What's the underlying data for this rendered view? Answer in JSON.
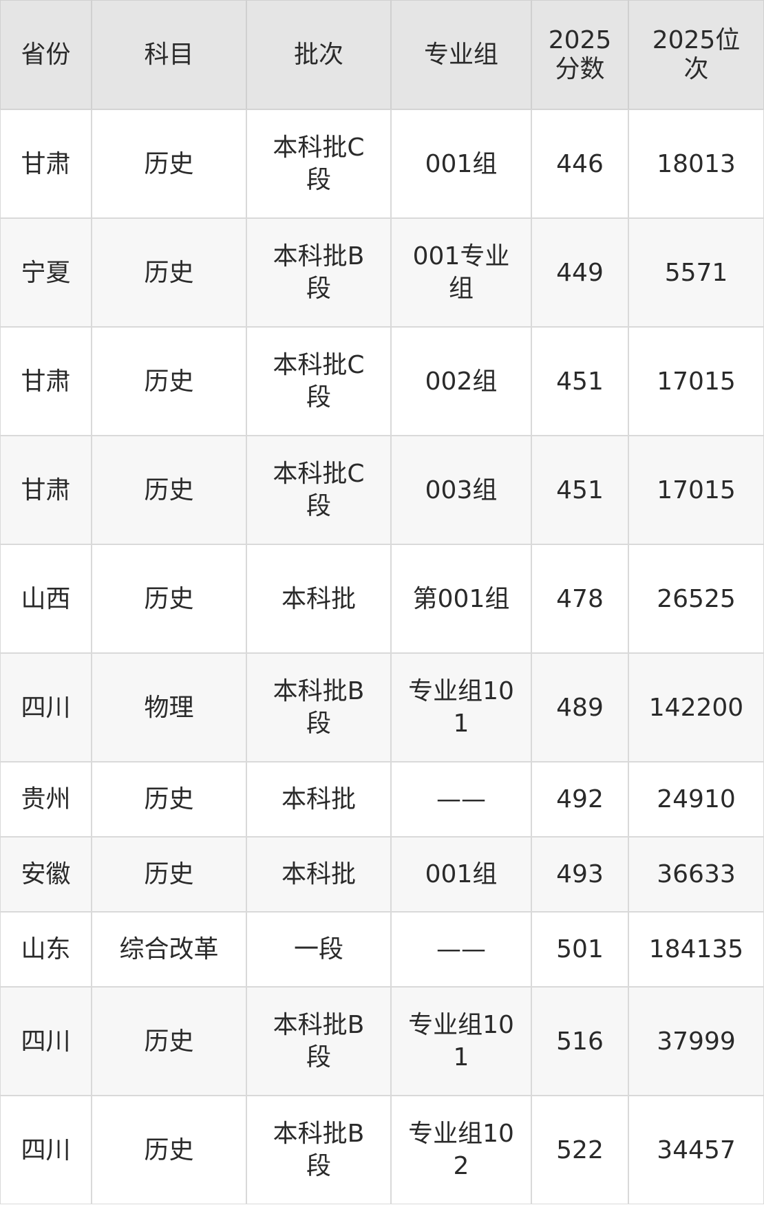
{
  "table": {
    "headers": [
      "省份",
      "科目",
      "批次",
      "专业组",
      "2025分数",
      "2025位次"
    ],
    "rows": [
      [
        "甘肃",
        "历史",
        "本科批C段",
        "001组",
        "446",
        "18013"
      ],
      [
        "宁夏",
        "历史",
        "本科批B段",
        "001专业组",
        "449",
        "5571"
      ],
      [
        "甘肃",
        "历史",
        "本科批C段",
        "002组",
        "451",
        "17015"
      ],
      [
        "甘肃",
        "历史",
        "本科批C段",
        "003组",
        "451",
        "17015"
      ],
      [
        "山西",
        "历史",
        "本科批",
        "第001组",
        "478",
        "26525"
      ],
      [
        "四川",
        "物理",
        "本科批B段",
        "专业组101",
        "489",
        "142200"
      ],
      [
        "贵州",
        "历史",
        "本科批",
        "——",
        "492",
        "24910"
      ],
      [
        "安徽",
        "历史",
        "本科批",
        "001组",
        "493",
        "36633"
      ],
      [
        "山东",
        "综合改革",
        "一段",
        "——",
        "501",
        "184135"
      ],
      [
        "四川",
        "历史",
        "本科批B段",
        "专业组101",
        "516",
        "37999"
      ],
      [
        "四川",
        "历史",
        "本科批B段",
        "专业组102",
        "522",
        "34457"
      ]
    ]
  }
}
